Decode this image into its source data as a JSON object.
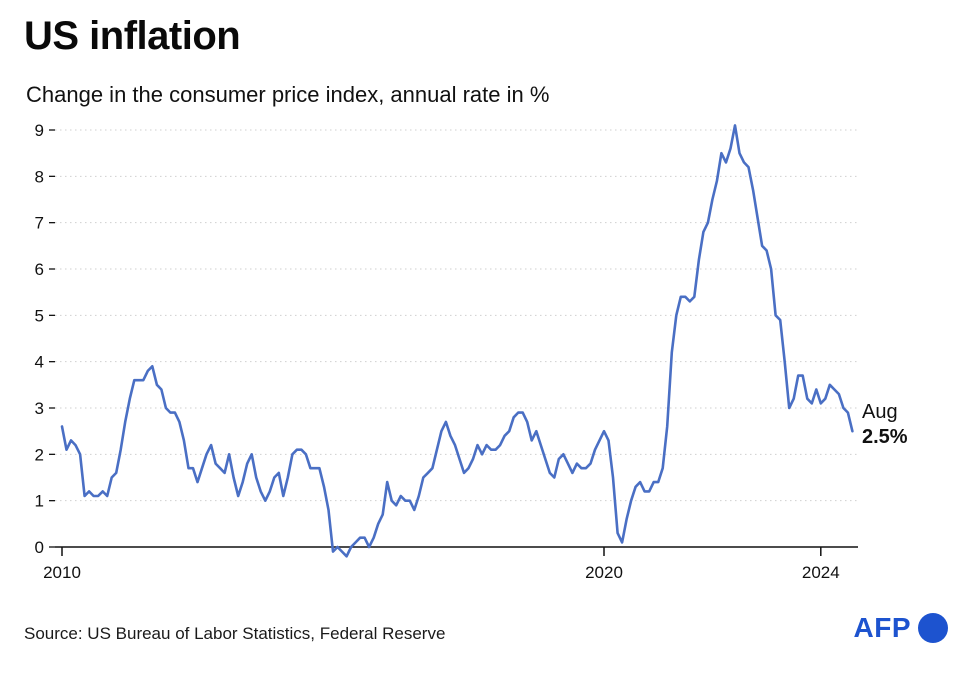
{
  "header": {
    "title": "US inflation",
    "subtitle": "Change in the consumer price index, annual rate in %"
  },
  "annotation": {
    "month": "Aug",
    "value": "2.5%"
  },
  "footer": {
    "source": "Source: US Bureau of Labor Statistics, Federal Reserve",
    "logo_text": "AFP"
  },
  "chart_data": {
    "type": "line",
    "title": "US inflation",
    "subtitle": "Change in the consumer price index, annual rate in %",
    "x_start_year": 2010,
    "x_step_months": 1,
    "x_tick_values": [
      2010,
      2020,
      2024
    ],
    "x_tick_labels": [
      "2010",
      "2020",
      "2024"
    ],
    "y_ticks": [
      0,
      1,
      2,
      3,
      4,
      5,
      6,
      7,
      8,
      9
    ],
    "ylim": [
      0,
      9
    ],
    "grid": "dotted-horizontal",
    "legend": "none",
    "line_color": "#4a6fc4",
    "axis_color": "#111111",
    "last_point_label": {
      "month": "Aug",
      "value": 2.5
    },
    "values": [
      2.6,
      2.1,
      2.3,
      2.2,
      2.0,
      1.1,
      1.2,
      1.1,
      1.1,
      1.2,
      1.1,
      1.5,
      1.6,
      2.1,
      2.7,
      3.2,
      3.6,
      3.6,
      3.6,
      3.8,
      3.9,
      3.5,
      3.4,
      3.0,
      2.9,
      2.9,
      2.7,
      2.3,
      1.7,
      1.7,
      1.4,
      1.7,
      2.0,
      2.2,
      1.8,
      1.7,
      1.6,
      2.0,
      1.5,
      1.1,
      1.4,
      1.8,
      2.0,
      1.5,
      1.2,
      1.0,
      1.2,
      1.5,
      1.6,
      1.1,
      1.5,
      2.0,
      2.1,
      2.1,
      2.0,
      1.7,
      1.7,
      1.7,
      1.3,
      0.8,
      -0.1,
      0.0,
      -0.1,
      -0.2,
      0.0,
      0.1,
      0.2,
      0.2,
      0.0,
      0.2,
      0.5,
      0.7,
      1.4,
      1.0,
      0.9,
      1.1,
      1.0,
      1.0,
      0.8,
      1.1,
      1.5,
      1.6,
      1.7,
      2.1,
      2.5,
      2.7,
      2.4,
      2.2,
      1.9,
      1.6,
      1.7,
      1.9,
      2.2,
      2.0,
      2.2,
      2.1,
      2.1,
      2.2,
      2.4,
      2.5,
      2.8,
      2.9,
      2.9,
      2.7,
      2.3,
      2.5,
      2.2,
      1.9,
      1.6,
      1.5,
      1.9,
      2.0,
      1.8,
      1.6,
      1.8,
      1.7,
      1.7,
      1.8,
      2.1,
      2.3,
      2.5,
      2.3,
      1.5,
      0.3,
      0.1,
      0.6,
      1.0,
      1.3,
      1.4,
      1.2,
      1.2,
      1.4,
      1.4,
      1.7,
      2.6,
      4.2,
      5.0,
      5.4,
      5.4,
      5.3,
      5.4,
      6.2,
      6.8,
      7.0,
      7.5,
      7.9,
      8.5,
      8.3,
      8.6,
      9.1,
      8.5,
      8.3,
      8.2,
      7.7,
      7.1,
      6.5,
      6.4,
      6.0,
      5.0,
      4.9,
      4.0,
      3.0,
      3.2,
      3.7,
      3.7,
      3.2,
      3.1,
      3.4,
      3.1,
      3.2,
      3.5,
      3.4,
      3.3,
      3.0,
      2.9,
      2.5
    ]
  }
}
